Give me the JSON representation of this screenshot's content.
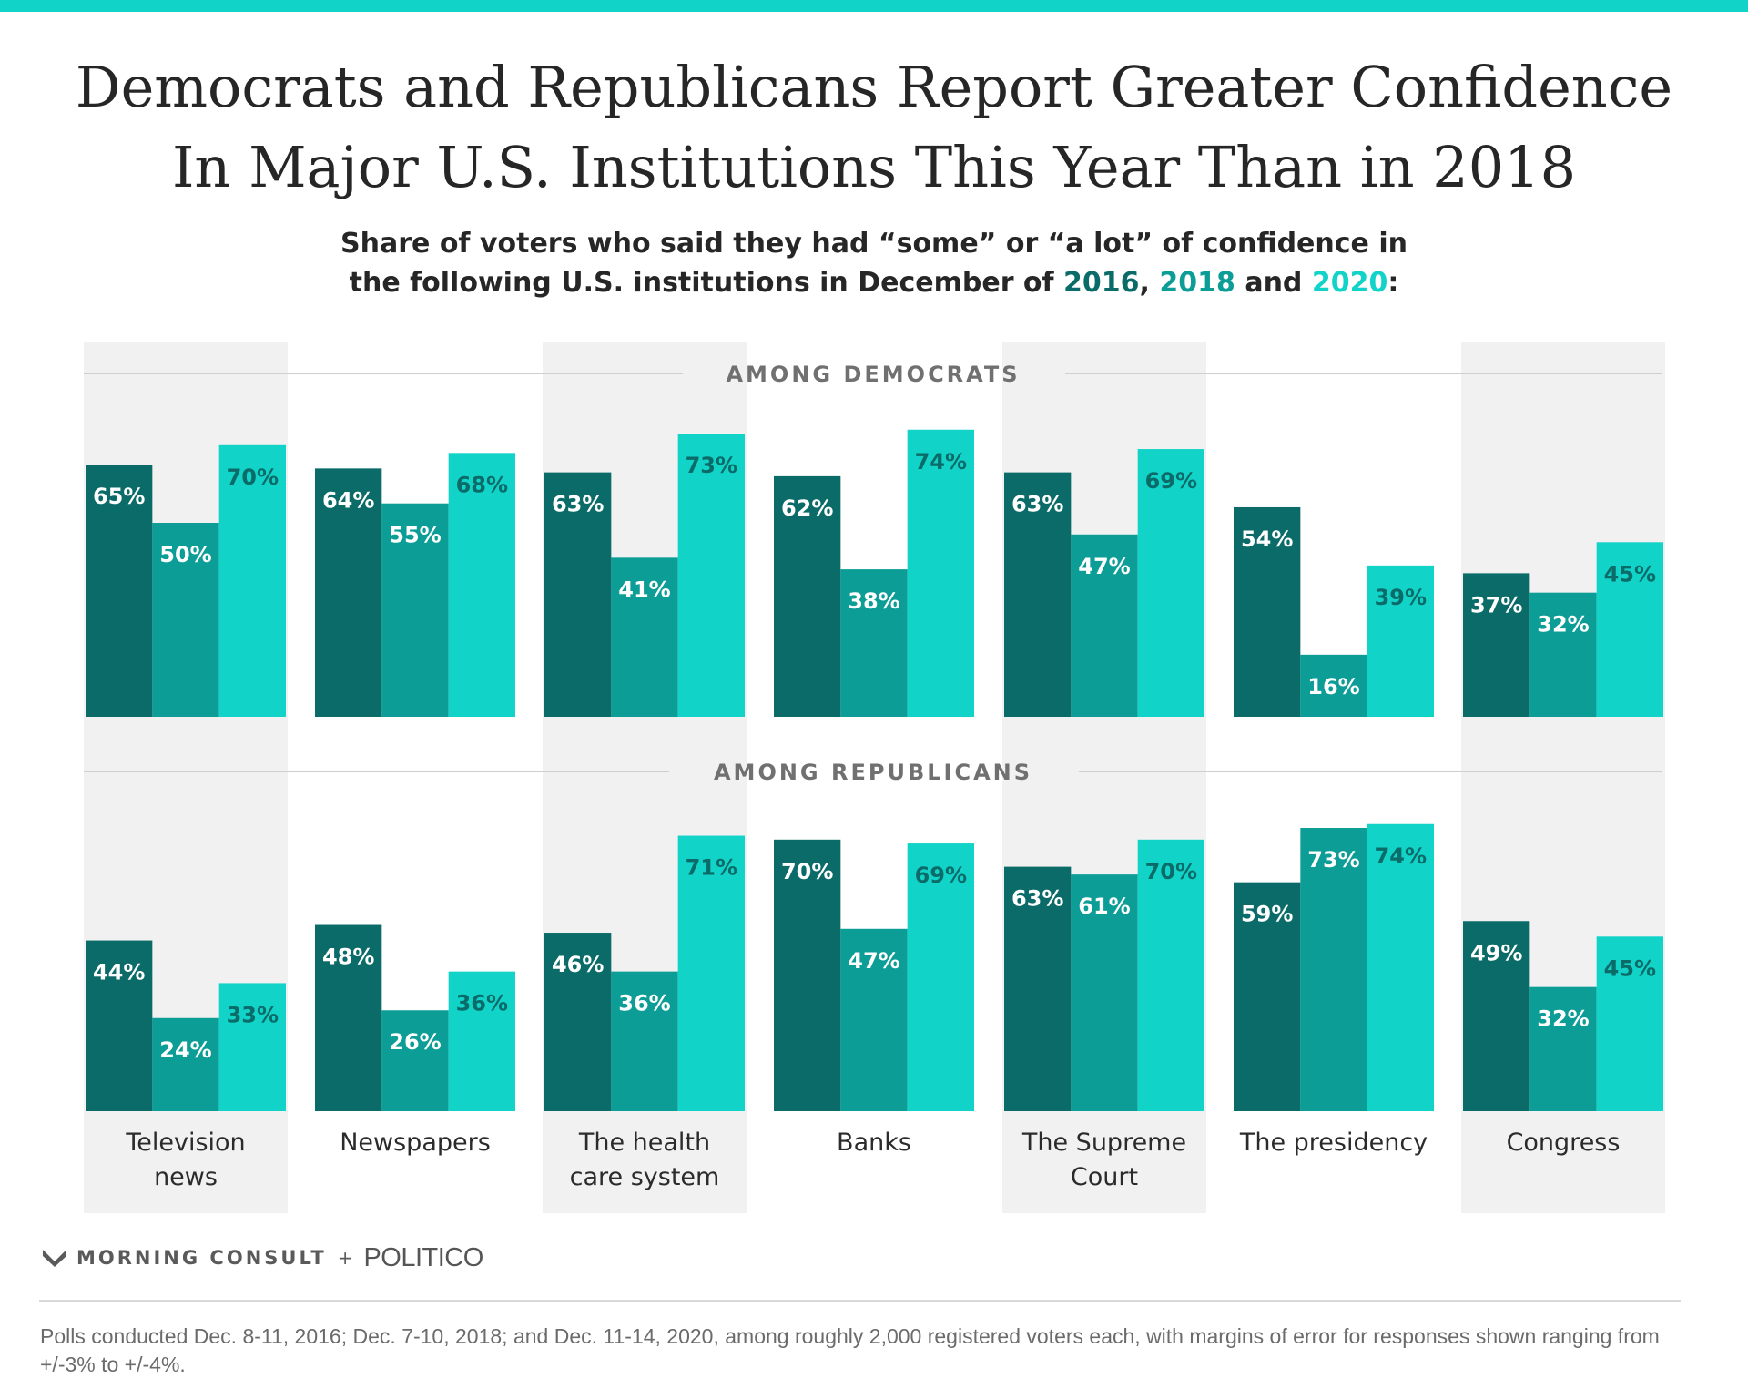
{
  "header": {
    "title_line1": "Democrats and Republicans Report Greater Confidence",
    "title_line2": "In Major U.S. Institutions This Year Than in 2018",
    "subtitle_line1": "Share of voters who said they had “some” or “a lot” of confidence in",
    "subtitle_line2_pre": "the following U.S. institutions in December of ",
    "year_2016": "2016",
    "sep1": ", ",
    "year_2018": "2018",
    "sep2": " and ",
    "year_2020": "2020",
    "subtitle_end": ":"
  },
  "colors": {
    "accent_rule": "#12d3c8",
    "y2016": "#0a6b68",
    "y2018": "#0c9d96",
    "y2020": "#12d3c8",
    "panel_shade": "#f1f1f1"
  },
  "chart_data": {
    "type": "bar",
    "categories": [
      "Television news",
      "Newspapers",
      "The health care system",
      "Banks",
      "The Supreme Court",
      "The presidency",
      "Congress"
    ],
    "category_labels": [
      [
        "Television",
        "news"
      ],
      [
        "Newspapers"
      ],
      [
        "The health",
        "care system"
      ],
      [
        "Banks"
      ],
      [
        "The Supreme",
        "Court"
      ],
      [
        "The presidency"
      ],
      [
        "Congress"
      ]
    ],
    "series_years": [
      "2016",
      "2018",
      "2020"
    ],
    "ylim": [
      0,
      100
    ],
    "grid": false,
    "legend": "none",
    "panels": [
      {
        "title": "AMONG DEMOCRATS",
        "values": [
          [
            65,
            50,
            70
          ],
          [
            64,
            55,
            68
          ],
          [
            63,
            41,
            73
          ],
          [
            62,
            38,
            74
          ],
          [
            63,
            47,
            69
          ],
          [
            54,
            16,
            39
          ],
          [
            37,
            32,
            45
          ]
        ]
      },
      {
        "title": "AMONG REPUBLICANS",
        "values": [
          [
            44,
            24,
            33
          ],
          [
            48,
            26,
            36
          ],
          [
            46,
            36,
            71
          ],
          [
            70,
            47,
            69
          ],
          [
            63,
            61,
            70
          ],
          [
            59,
            73,
            74
          ],
          [
            49,
            32,
            45
          ]
        ]
      }
    ]
  },
  "footer": {
    "brand_morning_consult": "MORNING CONSULT",
    "brand_plus": "+",
    "brand_politico": "POLITICO",
    "note": "Polls conducted Dec. 8-11, 2016; Dec. 7-10, 2018; and Dec. 11-14, 2020, among roughly 2,000 registered voters each, with margins of error for responses shown ranging from +/-3% to +/-4%."
  }
}
